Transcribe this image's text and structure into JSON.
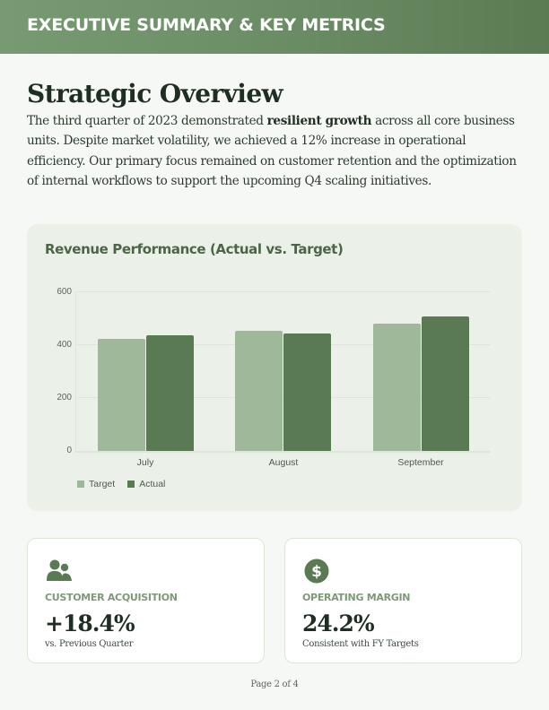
{
  "header": {
    "title": "EXECUTIVE SUMMARY & KEY METRICS"
  },
  "overview": {
    "title": "Strategic Overview",
    "intro_before": "The third quarter of 2023 demonstrated ",
    "intro_bold": "resilient growth",
    "intro_after": " across all core business units. Despite market volatility, we achieved a 12% increase in operational efficiency. Our primary focus remained on customer retention and the optimization of internal workflows to support the upcoming Q4 scaling initiatives."
  },
  "chart": {
    "title": "Revenue Performance (Actual vs. Target)",
    "y_ticks": [
      "600",
      "400",
      "200",
      "0"
    ],
    "categories": [
      "July",
      "August",
      "September"
    ],
    "legend": [
      {
        "label": "Target",
        "color": "#9eb899"
      },
      {
        "label": "Actual",
        "color": "#5a7a53"
      }
    ]
  },
  "chart_data": {
    "type": "bar",
    "title": "Revenue Performance (Actual vs. Target)",
    "categories": [
      "July",
      "August",
      "September"
    ],
    "series": [
      {
        "name": "Target",
        "color": "#9eb899",
        "values": [
          420,
          450,
          480
        ]
      },
      {
        "name": "Actual",
        "color": "#5a7a53",
        "values": [
          435,
          440,
          505
        ]
      }
    ],
    "xlabel": "",
    "ylabel": "",
    "ylim": [
      0,
      600
    ],
    "y_ticks": [
      0,
      200,
      400,
      600
    ],
    "grid": true,
    "legend_position": "bottom-left"
  },
  "metrics": [
    {
      "icon": "users-icon",
      "label": "CUSTOMER ACQUISITION",
      "value": "+18.4%",
      "sub": "vs. Previous Quarter"
    },
    {
      "icon": "dollar-circle-icon",
      "label": "OPERATING MARGIN",
      "value": "24.2%",
      "sub": "Consistent with FY Targets"
    }
  ],
  "footer": {
    "page": "Page 2 of 4"
  },
  "colors": {
    "header_start": "#789a73",
    "header_end": "#5b7b53",
    "accent": "#5a7a53",
    "accent_light": "#9eb899",
    "chart_bg": "#ebf1e9",
    "label_green": "#7d9a76"
  }
}
